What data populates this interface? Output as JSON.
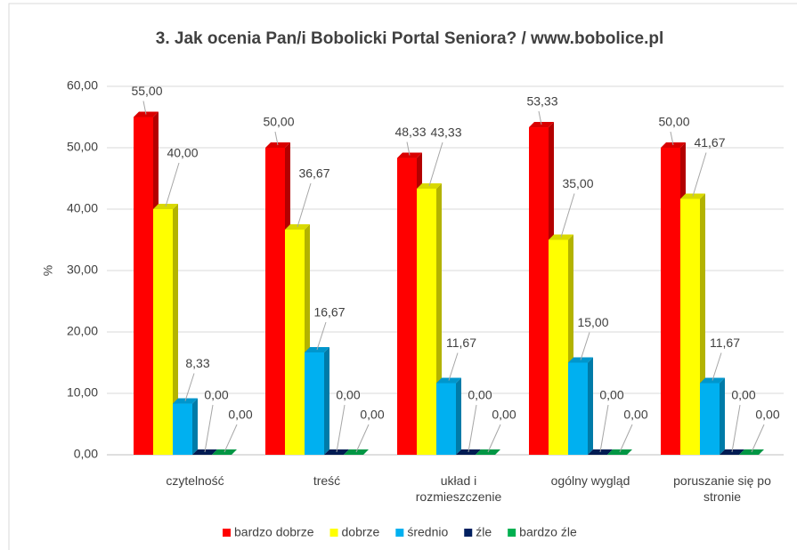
{
  "chart_data": {
    "type": "bar3d",
    "title": "3. Jak ocenia Pan/i Bobolicki Portal Seniora? / www.bobolice.pl",
    "y_label": "%",
    "categories": [
      "czytelność",
      "treść",
      "układ i rozmieszczenie",
      "ogólny wygląd",
      "poruszanie się po stronie"
    ],
    "series": [
      {
        "name": "bardzo dobrze",
        "color": "#ff0000",
        "values": [
          55,
          50,
          48.33,
          53.33,
          50
        ],
        "value_labels": [
          "55,00",
          "50,00",
          "48,33",
          "53,33",
          "50,00"
        ]
      },
      {
        "name": "dobrze",
        "color": "#ffff00",
        "values": [
          40,
          36.67,
          43.33,
          35,
          41.67
        ],
        "value_labels": [
          "40,00",
          "36,67",
          "43,33",
          "35,00",
          "41,67"
        ]
      },
      {
        "name": "średnio",
        "color": "#00b0f0",
        "values": [
          8.33,
          16.67,
          11.67,
          15,
          11.67
        ],
        "value_labels": [
          "8,33",
          "16,67",
          "11,67",
          "15,00",
          "11,67"
        ]
      },
      {
        "name": "źle",
        "color": "#002060",
        "values": [
          0,
          0,
          0,
          0,
          0
        ],
        "value_labels": [
          "0,00",
          "0,00",
          "0,00",
          "0,00",
          "0,00"
        ]
      },
      {
        "name": "bardzo źle",
        "color": "#00b050",
        "values": [
          0,
          0,
          0,
          0,
          0
        ],
        "value_labels": [
          "0,00",
          "0,00",
          "0,00",
          "0,00",
          "0,00"
        ]
      }
    ],
    "ylim": [
      0,
      60
    ],
    "yticks": [
      {
        "value": 0,
        "label": "0,00"
      },
      {
        "value": 10,
        "label": "10,00"
      },
      {
        "value": 20,
        "label": "20,00"
      },
      {
        "value": 30,
        "label": "30,00"
      },
      {
        "value": 40,
        "label": "40,00"
      },
      {
        "value": 50,
        "label": "50,00"
      },
      {
        "value": 60,
        "label": "60,00"
      }
    ],
    "legend": "bottom"
  }
}
